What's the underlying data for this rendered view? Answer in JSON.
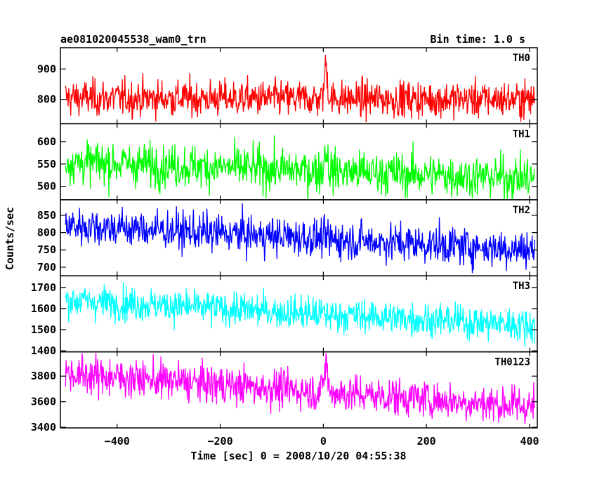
{
  "header": {
    "title": "ae081020045538_wam0_trn",
    "bin_time": "Bin time: 1.0 s"
  },
  "axes": {
    "ylabel": "Counts/sec",
    "xlabel": "Time [sec] 0 = 2008/10/20 04:55:38"
  },
  "chart_data": {
    "type": "line",
    "x_range": [
      -510,
      415
    ],
    "x_start": -500,
    "x_end": 410,
    "x_step": 1,
    "x_ticks": [
      -400,
      -200,
      0,
      200,
      400
    ],
    "x_tick_labels": [
      "−400",
      "−200",
      "0",
      "200",
      "400"
    ],
    "seed": 12345,
    "panels": [
      {
        "name": "TH0",
        "color": "#ff0000",
        "ylim": [
          720,
          970
        ],
        "y_ticks": [
          800,
          900
        ],
        "y_tick_labels": [
          "800",
          "900"
        ],
        "baseline_start": 805,
        "baseline_end": 800,
        "noise": 30,
        "burst": {
          "t": 5,
          "amplitude": 110,
          "width": 3
        }
      },
      {
        "name": "TH1",
        "color": "#00ff00",
        "ylim": [
          470,
          640
        ],
        "y_ticks": [
          500,
          550,
          600
        ],
        "y_tick_labels": [
          "500",
          "550",
          "600"
        ],
        "baseline_start": 555,
        "baseline_end": 518,
        "noise": 24,
        "burst": {
          "t": 5,
          "amplitude": 50,
          "width": 3
        }
      },
      {
        "name": "TH2",
        "color": "#0000ff",
        "ylim": [
          675,
          895
        ],
        "y_ticks": [
          700,
          750,
          800,
          850
        ],
        "y_tick_labels": [
          "700",
          "750",
          "800",
          "850"
        ],
        "baseline_start": 822,
        "baseline_end": 750,
        "noise": 28,
        "burst": null
      },
      {
        "name": "TH3",
        "color": "#00ffff",
        "ylim": [
          1395,
          1755
        ],
        "y_ticks": [
          1400,
          1500,
          1600,
          1700
        ],
        "y_tick_labels": [
          "1400",
          "1500",
          "1600",
          "1700"
        ],
        "baseline_start": 1640,
        "baseline_end": 1520,
        "noise": 40,
        "burst": null
      },
      {
        "name": "TH0123",
        "color": "#ff00ff",
        "ylim": [
          3395,
          3990
        ],
        "y_ticks": [
          3400,
          3600,
          3800
        ],
        "y_tick_labels": [
          "3400",
          "3600",
          "3800"
        ],
        "baseline_start": 3820,
        "baseline_end": 3560,
        "noise": 75,
        "burst": {
          "t": 5,
          "amplitude": 240,
          "width": 3
        }
      }
    ]
  }
}
